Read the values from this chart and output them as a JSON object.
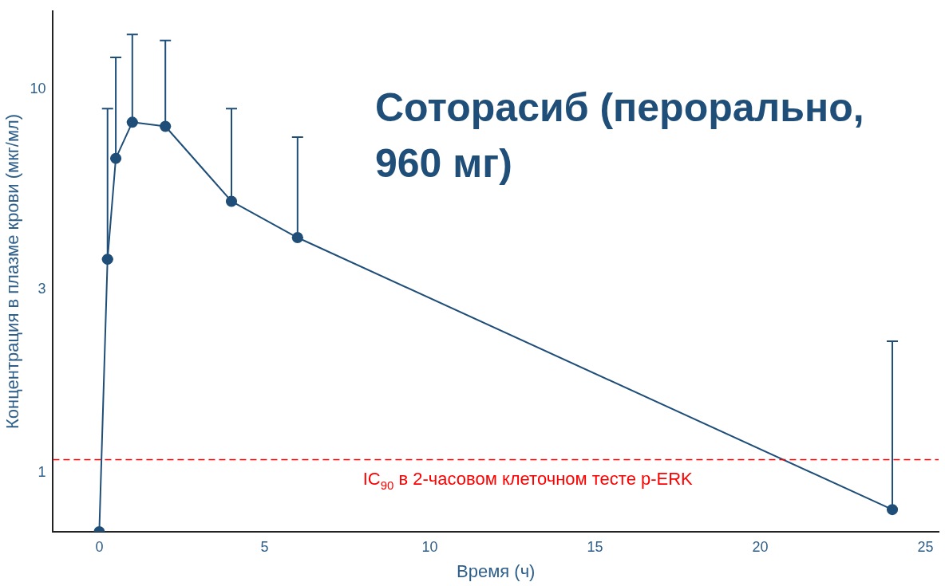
{
  "chart_data": {
    "type": "line",
    "title": "Соторасиб (перорально, 960 мг)",
    "xlabel": "Время (ч)",
    "ylabel": "Концентрация в плазме крови (мкг/мл)",
    "x": [
      0,
      0.25,
      0.5,
      1,
      2,
      4,
      6,
      24
    ],
    "series": [
      {
        "color": "#1f4e79",
        "values": [
          0.7,
          3.6,
          6.6,
          8.2,
          8.0,
          5.1,
          4.1,
          0.8
        ],
        "errors": [
          null,
          [
            3.6,
            8.9
          ],
          [
            6.6,
            12.1
          ],
          [
            8.2,
            13.9
          ],
          [
            8.0,
            13.4
          ],
          [
            5.1,
            8.9
          ],
          [
            4.1,
            7.5
          ],
          [
            0.8,
            2.2
          ]
        ]
      }
    ],
    "log": "y",
    "xlim": [
      -1.4,
      25.4
    ],
    "xticks": [
      0,
      5,
      10,
      15,
      20,
      25
    ],
    "ylim": [
      0.7,
      16
    ],
    "yticks": [
      1,
      3,
      10
    ],
    "ref_lines": [
      {
        "axis": "y",
        "value": 1.08,
        "label": "IC$_{90}$ в 2-часовом клеточном тесте p-ERK",
        "color": "#ff0000",
        "line_style": "dashed"
      }
    ],
    "marker": "circle",
    "grid": false,
    "legend": false
  }
}
